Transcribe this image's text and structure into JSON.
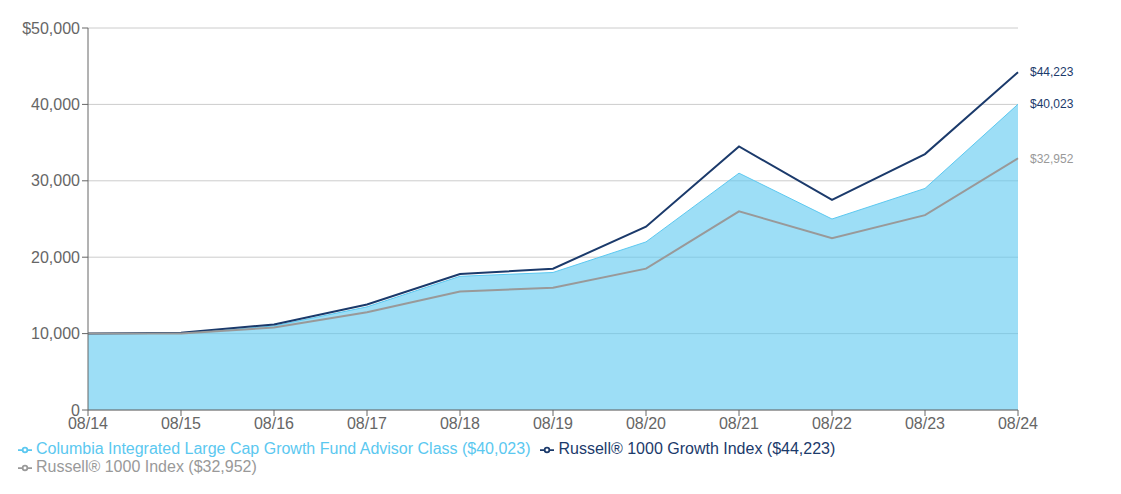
{
  "chart_data": {
    "type": "line",
    "categories": [
      "08/14",
      "08/15",
      "08/16",
      "08/17",
      "08/18",
      "08/19",
      "08/20",
      "08/21",
      "08/22",
      "08/23",
      "08/24"
    ],
    "series": [
      {
        "name": "Columbia Integrated Large Cap Growth Fund Advisor Class ($40,023)",
        "type": "area",
        "color": "#5BC8F0",
        "values": [
          10000,
          10000,
          11000,
          13500,
          17500,
          18000,
          22000,
          31000,
          25000,
          29000,
          40023
        ]
      },
      {
        "name": "Russell® 1000 Growth Index ($44,223)",
        "type": "line",
        "color": "#1B3A6B",
        "values": [
          10000,
          10100,
          11200,
          13800,
          17800,
          18500,
          24000,
          34500,
          27500,
          33500,
          44223
        ]
      },
      {
        "name": "Russell® 1000 Index ($32,952)",
        "type": "line",
        "color": "#999999",
        "values": [
          10000,
          10000,
          10800,
          12800,
          15500,
          16000,
          18500,
          26000,
          22500,
          25500,
          32952
        ]
      }
    ],
    "ylim": [
      0,
      50000
    ],
    "yticks": [
      0,
      {
        "value": 10000,
        "label": "10,000"
      },
      {
        "value": 20000,
        "label": "20,000"
      },
      {
        "value": 30000,
        "label": "30,000"
      },
      {
        "value": 40000,
        "label": "40,000"
      },
      {
        "value": 50000,
        "label": "$50,000"
      }
    ],
    "grid": true,
    "legend": "lower left",
    "annotations": [
      {
        "text": "$44,223",
        "x": "08/24",
        "y": 44223,
        "color": "#1B3A6B"
      },
      {
        "text": "$40,023",
        "x": "08/24",
        "y": 40023,
        "color": "#1B3A6B"
      },
      {
        "text": "$32,952",
        "x": "08/24",
        "y": 32952,
        "color": "#999999"
      }
    ]
  }
}
